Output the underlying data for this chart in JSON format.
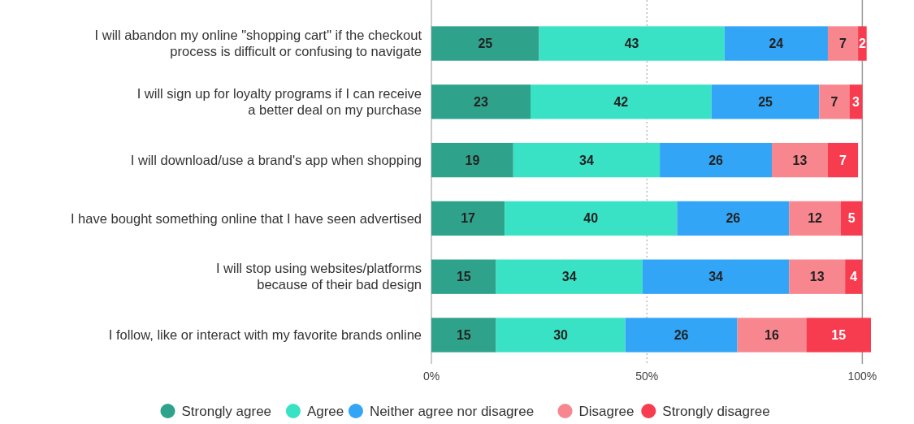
{
  "chart_data": {
    "type": "bar",
    "orientation": "horizontal",
    "stacked": true,
    "categories": [
      "I will abandon my online \"shopping cart\" if the checkout\nprocess is difficult or confusing to navigate",
      "I will sign up for loyalty programs if I can receive\na better deal on my purchase",
      "I will download/use a brand's app when shopping",
      "I have bought something online that I have seen advertised",
      "I will stop using websites/platforms\nbecause of their bad design",
      "I follow, like or interact with my favorite brands online"
    ],
    "series": [
      {
        "name": "Strongly agree",
        "color": "#2fa28b",
        "values": [
          25,
          23,
          19,
          17,
          15,
          15
        ]
      },
      {
        "name": "Agree",
        "color": "#3ae2c5",
        "values": [
          43,
          42,
          34,
          40,
          34,
          30
        ]
      },
      {
        "name": "Neither agree nor disagree",
        "color": "#33a5f7",
        "values": [
          24,
          25,
          26,
          26,
          34,
          26
        ]
      },
      {
        "name": "Disagree",
        "color": "#f7868e",
        "values": [
          7,
          7,
          13,
          12,
          13,
          16
        ]
      },
      {
        "name": "Strongly disagree",
        "color": "#f73c50",
        "values": [
          2,
          3,
          7,
          5,
          4,
          15
        ]
      }
    ],
    "xlim": [
      0,
      102
    ],
    "xticks": [
      {
        "value": 0,
        "label": "0%"
      },
      {
        "value": 50,
        "label": "50%"
      },
      {
        "value": 100,
        "label": "100%"
      }
    ],
    "ref_lines": [
      {
        "axis": "x",
        "value": 50,
        "color": "#999999",
        "line_style": "dotted"
      },
      {
        "axis": "x",
        "value": 100,
        "color": "#999999",
        "line_style": "solid"
      }
    ],
    "data_labels": true,
    "legend": "bottom"
  }
}
